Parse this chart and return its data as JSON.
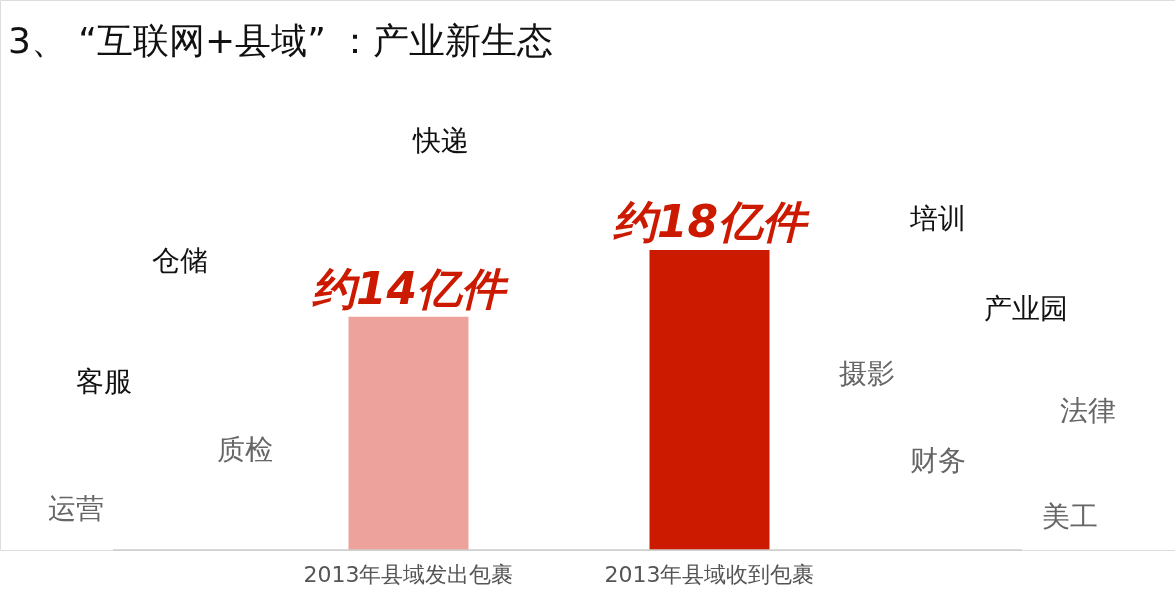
{
  "chart_data": {
    "type": "bar",
    "title": "3、 “互联网+县域” ：产业新生态",
    "categories": [
      "2013年县域发出包裹",
      "2013年县域收到包裹"
    ],
    "values": [
      14,
      18
    ],
    "colors": [
      "#eda39c",
      "#cc1a00"
    ],
    "value_labels": [
      "约14亿件",
      "约18亿件"
    ],
    "annotations": [
      "快递",
      "仓储",
      "客服",
      "质检",
      "运营",
      "培训",
      "产业园",
      "摄影",
      "法律",
      "财务",
      "美工"
    ]
  }
}
